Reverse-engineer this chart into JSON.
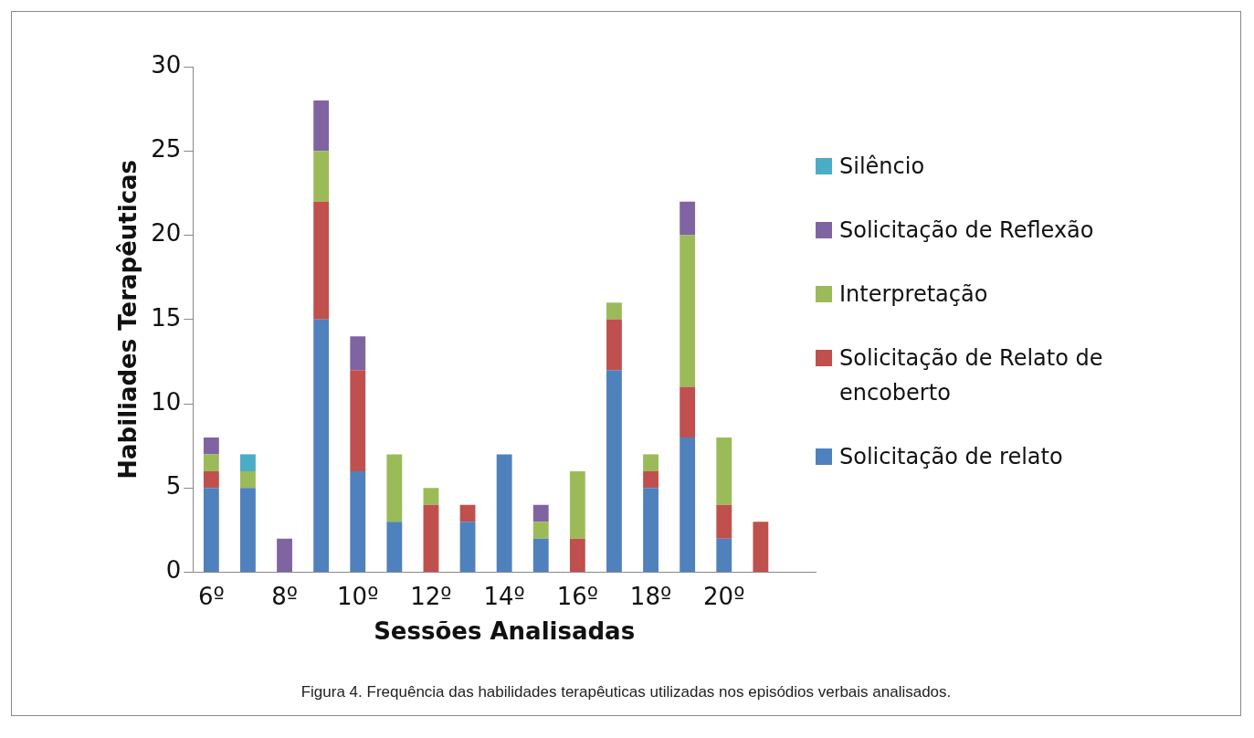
{
  "chart_data": {
    "type": "bar",
    "stacked": true,
    "xlabel": "Sessões Analisadas",
    "ylabel": "Habiliades Terapêuticas",
    "categories": [
      "6º",
      null,
      "8º",
      null,
      "10º",
      null,
      "12º",
      null,
      "14º",
      null,
      "16º",
      null,
      "18º",
      null,
      "20º",
      null,
      null
    ],
    "series": [
      {
        "name": "Solicitação de relato",
        "color": "#4f81bd",
        "values": [
          5,
          5,
          0,
          15,
          6,
          3,
          0,
          3,
          7,
          2,
          0,
          12,
          5,
          8,
          2,
          0,
          null
        ]
      },
      {
        "name": "Solicitação de Relato de encoberto",
        "color": "#c0504d",
        "values": [
          1,
          0,
          0,
          7,
          6,
          0,
          4,
          1,
          0,
          0,
          2,
          3,
          1,
          3,
          2,
          3,
          null
        ]
      },
      {
        "name": "Interpretação",
        "color": "#9bbb59",
        "values": [
          1,
          1,
          0,
          3,
          0,
          4,
          1,
          0,
          0,
          1,
          4,
          1,
          1,
          9,
          4,
          0,
          null
        ]
      },
      {
        "name": "Solicitação de Reflexão",
        "color": "#8064a2",
        "values": [
          1,
          0,
          2,
          3,
          2,
          0,
          0,
          0,
          0,
          1,
          0,
          0,
          0,
          2,
          0,
          0,
          null
        ]
      },
      {
        "name": "Silêncio",
        "color": "#4bacc6",
        "values": [
          0,
          1,
          0,
          0,
          0,
          0,
          0,
          0,
          0,
          0,
          0,
          0,
          0,
          0,
          0,
          0,
          null
        ]
      }
    ],
    "ylim": [
      0,
      30
    ],
    "yticks": [
      0,
      5,
      10,
      15,
      20,
      25,
      30
    ],
    "grid": false,
    "legend": "right",
    "annotations": [
      "Figura 4. Frequência das habilidades terapêuticas utilizadas nos episódios verbais analisados."
    ]
  }
}
